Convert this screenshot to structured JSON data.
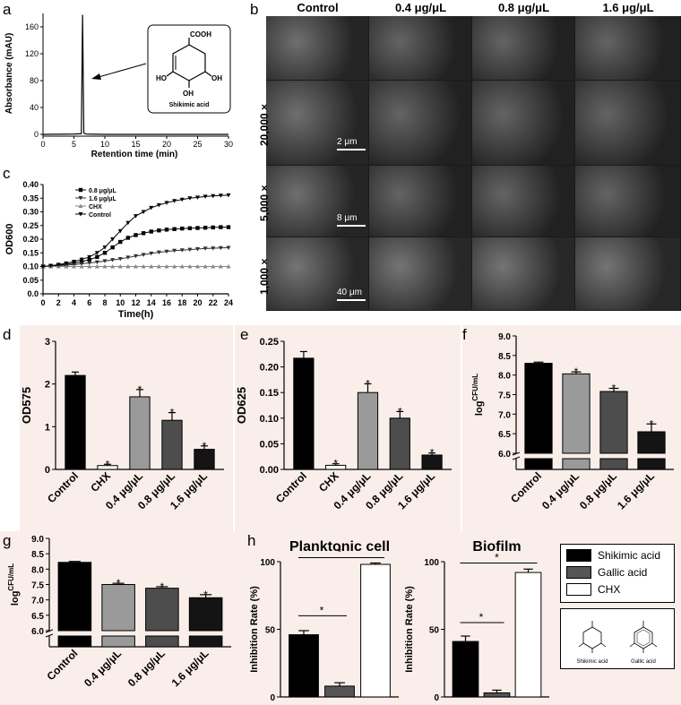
{
  "panel_letters": {
    "a": "a",
    "b": "b",
    "c": "c",
    "d": "d",
    "e": "e",
    "f": "f",
    "g": "g",
    "h": "h"
  },
  "panel_a": {
    "ylabel": "Absorbance (mAU)",
    "xlabel": "Retention time (min)",
    "compound_label": "Shikimic acid",
    "structure_labels": {
      "cooh": "COOH",
      "ho_left": "HO",
      "oh_right": "OH",
      "oh_bottom": "OH"
    },
    "yticks": [
      "0",
      "40",
      "80",
      "120",
      "160"
    ],
    "xticks": [
      "0",
      "5",
      "10",
      "15",
      "20",
      "25",
      "30"
    ]
  },
  "panel_b": {
    "columns": [
      "Control",
      "0.4 μg/μL",
      "0.8 μg/μL",
      "1.6 μg/μL"
    ],
    "rows": [
      "20,000×",
      "5,000×",
      "1,000×"
    ],
    "scale_bars": [
      "2 μm",
      "8 μm",
      "40 μm"
    ]
  },
  "chart_data": [
    {
      "id": "a",
      "type": "line",
      "xlabel": "Retention time (min)",
      "ylabel": "Absorbance (mAU)",
      "xlim": [
        0,
        30
      ],
      "ylim": [
        0,
        180
      ],
      "series": [
        {
          "x": [
            0,
            5,
            6.2,
            6.4,
            6.6,
            6.8,
            7,
            10,
            20,
            30
          ],
          "y": [
            0,
            0.5,
            1,
            178,
            2,
            1,
            0.5,
            0,
            0,
            0
          ]
        }
      ]
    },
    {
      "id": "c",
      "type": "line",
      "xlabel": "Time(h)",
      "ylabel": "OD600",
      "xlim": [
        0,
        24
      ],
      "ylim": [
        0,
        0.4
      ],
      "xticks": [
        "0",
        "2",
        "4",
        "6",
        "8",
        "10",
        "12",
        "14",
        "16",
        "18",
        "20",
        "22",
        "24"
      ],
      "yticks": [
        "0.0",
        "0.05",
        "0.10",
        "0.15",
        "0.20",
        "0.25",
        "0.30",
        "0.35",
        "0.40"
      ],
      "x": [
        0,
        1,
        2,
        3,
        4,
        5,
        6,
        7,
        8,
        9,
        10,
        11,
        12,
        13,
        14,
        15,
        16,
        17,
        18,
        19,
        20,
        21,
        22,
        23,
        24
      ],
      "series": [
        {
          "name": "0.8 μg/μL",
          "marker": "square",
          "values": [
            0.1,
            0.102,
            0.105,
            0.108,
            0.112,
            0.118,
            0.125,
            0.135,
            0.15,
            0.17,
            0.19,
            0.205,
            0.215,
            0.222,
            0.228,
            0.232,
            0.235,
            0.237,
            0.239,
            0.24,
            0.241,
            0.242,
            0.243,
            0.244,
            0.244
          ]
        },
        {
          "name": "1.6 μg/μL",
          "marker": "triangle-down",
          "values": [
            0.1,
            0.101,
            0.103,
            0.105,
            0.107,
            0.11,
            0.113,
            0.116,
            0.12,
            0.124,
            0.128,
            0.133,
            0.138,
            0.143,
            0.148,
            0.152,
            0.155,
            0.158,
            0.16,
            0.162,
            0.164,
            0.166,
            0.167,
            0.168,
            0.169
          ]
        },
        {
          "name": "CHX",
          "marker": "triangle-up",
          "values": [
            0.1,
            0.1,
            0.1,
            0.1,
            0.1,
            0.1,
            0.1,
            0.1,
            0.1,
            0.1,
            0.1,
            0.1,
            0.1,
            0.1,
            0.1,
            0.1,
            0.1,
            0.1,
            0.1,
            0.1,
            0.1,
            0.1,
            0.1,
            0.1,
            0.1
          ]
        },
        {
          "name": "Control",
          "marker": "triangle-down",
          "values": [
            0.1,
            0.103,
            0.107,
            0.112,
            0.118,
            0.126,
            0.135,
            0.15,
            0.17,
            0.2,
            0.23,
            0.26,
            0.285,
            0.3,
            0.315,
            0.325,
            0.333,
            0.34,
            0.345,
            0.35,
            0.353,
            0.356,
            0.358,
            0.36,
            0.361
          ]
        }
      ]
    },
    {
      "id": "d",
      "type": "bar",
      "ylabel": "OD575",
      "ylim": [
        0,
        3
      ],
      "yticks": [
        "0",
        "1",
        "2",
        "3"
      ],
      "categories": [
        "Control",
        "CHX",
        "0.4 μg/μL",
        "0.8 μg/μL",
        "1.6 μg/μL"
      ],
      "values": [
        2.2,
        0.09,
        1.7,
        1.15,
        0.47
      ],
      "errors": [
        0.08,
        0.03,
        0.17,
        0.18,
        0.08
      ],
      "significant": [
        false,
        true,
        true,
        true,
        true
      ],
      "colors": [
        "#000000",
        "#ffffff",
        "#9a9a9a",
        "#4d4d4d",
        "#141414"
      ]
    },
    {
      "id": "e",
      "type": "bar",
      "ylabel": "OD625",
      "ylim": [
        0,
        0.25
      ],
      "yticks": [
        "0.00",
        "0.05",
        "0.10",
        "0.15",
        "0.20",
        "0.25"
      ],
      "categories": [
        "Control",
        "CHX",
        "0.4 μg/μL",
        "0.8 μg/μL",
        "1.6 μg/μL"
      ],
      "values": [
        0.217,
        0.008,
        0.15,
        0.1,
        0.028
      ],
      "errors": [
        0.013,
        0.003,
        0.017,
        0.013,
        0.004
      ],
      "significant": [
        false,
        true,
        true,
        true,
        true
      ],
      "colors": [
        "#000000",
        "#ffffff",
        "#9a9a9a",
        "#4d4d4d",
        "#141414"
      ]
    },
    {
      "id": "f",
      "type": "bar",
      "ylabel": "log CFU/mL",
      "ylim": [
        6.0,
        9.0
      ],
      "axis_break": true,
      "yticks": [
        "6.0",
        "6.5",
        "7.0",
        "7.5",
        "8.0",
        "8.5",
        "9.0"
      ],
      "categories": [
        "Control",
        "0.4 μg/μL",
        "0.8 μg/μL",
        "1.6 μg/μL"
      ],
      "values": [
        8.3,
        8.03,
        7.58,
        6.55
      ],
      "errors": [
        0.03,
        0.05,
        0.08,
        0.2
      ],
      "significant": [
        false,
        true,
        true,
        true
      ],
      "colors": [
        "#000000",
        "#9a9a9a",
        "#4d4d4d",
        "#141414"
      ]
    },
    {
      "id": "g",
      "type": "bar",
      "ylabel": "log CFU/mL",
      "ylim": [
        6.0,
        9.0
      ],
      "axis_break": true,
      "yticks": [
        "6.0",
        "6.5",
        "7.0",
        "7.5",
        "8.0",
        "8.5",
        "9.0"
      ],
      "categories": [
        "Control",
        "0.4 μg/μL",
        "0.8 μg/μL",
        "1.6 μg/μL"
      ],
      "values": [
        8.22,
        7.5,
        7.38,
        7.07
      ],
      "errors": [
        0.03,
        0.04,
        0.05,
        0.1
      ],
      "significant": [
        false,
        true,
        true,
        true
      ],
      "colors": [
        "#000000",
        "#9a9a9a",
        "#4d4d4d",
        "#141414"
      ]
    },
    {
      "id": "h1",
      "type": "bar",
      "title": "Planktonic cell",
      "ylabel": "Inhibition Rate (%)",
      "ylim": [
        0,
        100
      ],
      "yticks": [
        "0",
        "50",
        "100"
      ],
      "categories": [
        "Shikimic acid",
        "Gallic acid",
        "CHX"
      ],
      "values": [
        46,
        8,
        98
      ],
      "errors": [
        3,
        2.5,
        1
      ],
      "colors": [
        "#000000",
        "#555555",
        "#ffffff"
      ]
    },
    {
      "id": "h2",
      "type": "bar",
      "title": "Biofilm",
      "ylabel": "Inhibition Rate (%)",
      "ylim": [
        0,
        100
      ],
      "yticks": [
        "0",
        "50",
        "100"
      ],
      "categories": [
        "Shikimic acid",
        "Gallic acid",
        "CHX"
      ],
      "values": [
        41,
        3,
        92
      ],
      "errors": [
        4,
        2,
        2.5
      ],
      "colors": [
        "#000000",
        "#555555",
        "#ffffff"
      ]
    }
  ],
  "legend_h": [
    {
      "label": "Shikimic acid",
      "color": "#000000"
    },
    {
      "label": "Gallic acid",
      "color": "#555555"
    },
    {
      "label": "CHX",
      "color": "#ffffff"
    }
  ],
  "structures_h": {
    "left": "Shikimic acid",
    "right": "Gallic acid"
  },
  "star": "*"
}
